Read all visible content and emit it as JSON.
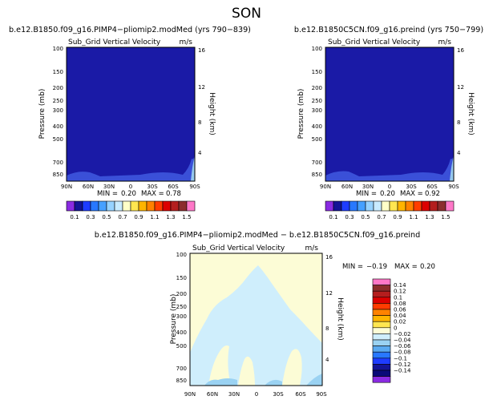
{
  "page_title": "SON",
  "colors": {
    "bg_blue": "#1a1aa6",
    "blue_edge": "#3a50d8",
    "blue_light": "#96c8ee",
    "diff_bg": "#fcfcd6",
    "diff_light_blue": "#cfeefc",
    "diff_blue": "#9ad2f2"
  },
  "chart_data": [
    {
      "type": "heatmap",
      "title": "b.e12.B1850.f09_g16.PIMP4−pliomip2.modMed (yrs 790−839)",
      "subtitle_left": "Sub_Grid Vertical Velocity",
      "subtitle_right": "m/s",
      "ylabel": "Pressure (mb)",
      "ylabel_right": "Height (km)",
      "x_ticks": [
        "90N",
        "60N",
        "30N",
        "0",
        "30S",
        "60S",
        "90S"
      ],
      "y_ticks": [
        "100",
        "150",
        "200",
        "250",
        "300",
        "400",
        "500",
        "700",
        "850"
      ],
      "y_ticks_right": [
        "16",
        "12",
        "8",
        "4"
      ],
      "min_label": "MIN =",
      "min_value": "0.20",
      "max_label": "MAX =",
      "max_value": "0.78",
      "colorbar_labels": [
        "0.1",
        "0.3",
        "0.5",
        "0.7",
        "0.9",
        "1.1",
        "1.3",
        "1.5"
      ],
      "colorbar_colors": [
        "#8a2be2",
        "#141496",
        "#1e3cff",
        "#2878ff",
        "#46a0ff",
        "#96d2ff",
        "#c8ebff",
        "#ffffc8",
        "#ffe650",
        "#ffb400",
        "#ff8200",
        "#ff3c00",
        "#dc0000",
        "#b41e1e",
        "#8c2d2d",
        "#ff78c8"
      ],
      "field_description": "uniform 0.1-0.3 band"
    },
    {
      "type": "heatmap",
      "title": "b.e12.B1850C5CN.f09_g16.preind (yrs 750−799)",
      "subtitle_left": "Sub_Grid Vertical Velocity",
      "subtitle_right": "m/s",
      "ylabel": "Pressure (mb)",
      "ylabel_right": "Height (km)",
      "x_ticks": [
        "90N",
        "60N",
        "30N",
        "0",
        "30S",
        "60S",
        "90S"
      ],
      "y_ticks": [
        "100",
        "150",
        "200",
        "250",
        "300",
        "400",
        "500",
        "700",
        "850"
      ],
      "y_ticks_right": [
        "16",
        "12",
        "8",
        "4"
      ],
      "min_label": "MIN =",
      "min_value": "0.20",
      "max_label": "MAX =",
      "max_value": "0.92",
      "colorbar_labels": [
        "0.1",
        "0.3",
        "0.5",
        "0.7",
        "0.9",
        "1.1",
        "1.3",
        "1.5"
      ],
      "colorbar_colors": [
        "#8a2be2",
        "#141496",
        "#1e3cff",
        "#2878ff",
        "#46a0ff",
        "#96d2ff",
        "#c8ebff",
        "#ffffc8",
        "#ffe650",
        "#ffb400",
        "#ff8200",
        "#ff3c00",
        "#dc0000",
        "#b41e1e",
        "#8c2d2d",
        "#ff78c8"
      ]
    },
    {
      "type": "heatmap",
      "title": "b.e12.B1850.f09_g16.PIMP4−pliomip2.modMed − b.e12.B1850C5CN.f09_g16.preind",
      "subtitle_left": "Sub_Grid Vertical Velocity",
      "subtitle_right": "m/s",
      "ylabel": "Pressure (mb)",
      "ylabel_right": "Height (km)",
      "x_ticks": [
        "90N",
        "60N",
        "30N",
        "0",
        "30S",
        "60S",
        "90S"
      ],
      "y_ticks": [
        "100",
        "150",
        "200",
        "250",
        "300",
        "400",
        "500",
        "700",
        "850"
      ],
      "y_ticks_right": [
        "16",
        "12",
        "8",
        "4"
      ],
      "min_label": "MIN =",
      "min_value": "−0.19",
      "max_label": "MAX =",
      "max_value": "0.20",
      "colorbar_labels": [
        "0.14",
        "0.12",
        "0.1",
        "0.08",
        "0.06",
        "0.04",
        "0.02",
        "0",
        "−0.02",
        "−0.04",
        "−0.06",
        "−0.08",
        "−0.1",
        "−0.12",
        "−0.14"
      ],
      "colorbar_colors": [
        "#ff78c8",
        "#8c2d2d",
        "#b41e1e",
        "#dc0000",
        "#ff3c00",
        "#ff8200",
        "#ffb400",
        "#ffe650",
        "#fcfcd6",
        "#cfeefc",
        "#9ad2f2",
        "#5aaaf0",
        "#2878ff",
        "#1e3cff",
        "#141496",
        "#0a0a78",
        "#8a2be2"
      ]
    }
  ]
}
